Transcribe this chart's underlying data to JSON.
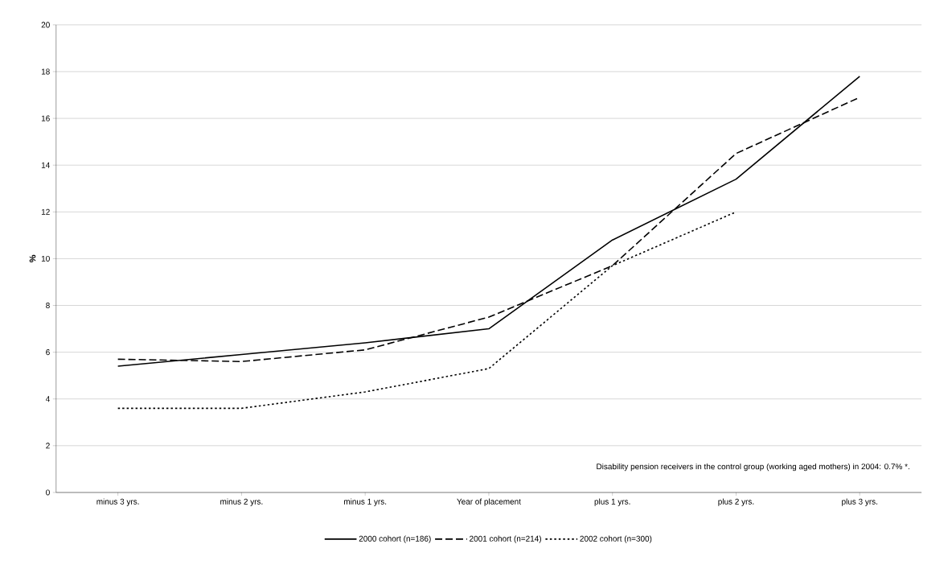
{
  "chart_data": {
    "type": "line",
    "ylabel": "%",
    "categories": [
      "minus 3 yrs.",
      "minus 2 yrs.",
      "minus 1 yrs.",
      "Year of placement",
      "plus 1 yrs.",
      "plus 2 yrs.",
      "plus 3 yrs."
    ],
    "series": [
      {
        "name": "2000 cohort (n=186)",
        "color": "#000000",
        "line_style": "solid",
        "values": [
          5.4,
          5.9,
          6.4,
          7.0,
          10.8,
          13.4,
          17.8
        ]
      },
      {
        "name": "2001 cohort (n=214)",
        "color": "#000000",
        "line_style": "dashed",
        "values": [
          5.7,
          5.6,
          6.1,
          7.5,
          9.7,
          14.5,
          16.9
        ]
      },
      {
        "name": "2002 cohort (n=300)",
        "color": "#000000",
        "line_style": "dotted",
        "values": [
          3.6,
          3.6,
          4.3,
          5.3,
          9.7,
          12.0,
          null
        ]
      }
    ],
    "ylim": [
      0,
      20
    ],
    "yticks": [
      0,
      2,
      4,
      6,
      8,
      10,
      12,
      14,
      16,
      18,
      20
    ],
    "grid": "y",
    "legend": "bottom",
    "marker": "none",
    "annotations": [
      "Disability pension receivers in the control group (working aged mothers) in 2004: 0.7% *."
    ]
  }
}
